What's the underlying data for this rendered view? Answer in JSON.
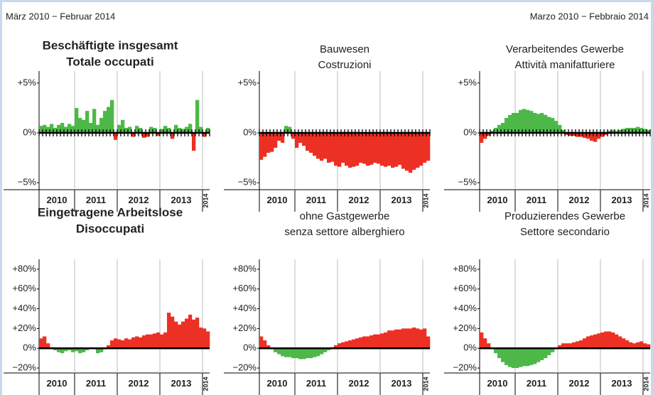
{
  "header": {
    "left": "März 2010 − Februar 2014",
    "right": "Marzo 2010 − Febbraio 2014"
  },
  "chart_data": [
    {
      "type": "bar",
      "title_lines": [
        "Beschäftigte insgesamt",
        "Totale occupati"
      ],
      "bold_title": true,
      "month_ticks": true,
      "positive_color": "#4db848",
      "negative_color": "#ed3024",
      "ylim": [
        -5.7,
        6.2
      ],
      "yticks": [
        {
          "value": 5,
          "label": "+5%"
        },
        {
          "value": 0,
          "label": "0%"
        },
        {
          "value": -5,
          "label": "−5%"
        }
      ],
      "x_labels": [
        "2010",
        "2011",
        "2012",
        "2013",
        "2014"
      ],
      "values": [
        0.7,
        0.8,
        0.6,
        0.9,
        0.5,
        0.8,
        1.0,
        0.6,
        0.9,
        0.7,
        2.5,
        1.5,
        1.3,
        2.2,
        1.0,
        2.4,
        0.8,
        1.5,
        2.2,
        2.6,
        3.3,
        -0.7,
        0.8,
        1.3,
        0.5,
        0.6,
        -0.4,
        0.7,
        0.5,
        -0.5,
        -0.4,
        0.6,
        0.5,
        -0.3,
        0.4,
        0.7,
        0.5,
        -0.6,
        0.8,
        0.5,
        0.4,
        0.6,
        0.9,
        -1.8,
        3.3,
        0.6,
        -0.4,
        0.5
      ]
    },
    {
      "type": "bar",
      "title_lines": [
        "Bauwesen",
        "Costruzioni"
      ],
      "bold_title": false,
      "month_ticks": true,
      "positive_color": "#4db848",
      "negative_color": "#ed3024",
      "ylim": [
        -5.7,
        6.2
      ],
      "yticks": [
        {
          "value": 5,
          "label": "+5%"
        },
        {
          "value": 0,
          "label": "0%"
        },
        {
          "value": -5,
          "label": "−5%"
        }
      ],
      "x_labels": [
        "2010",
        "2011",
        "2012",
        "2013",
        "2014"
      ],
      "values": [
        -2.7,
        -2.4,
        -2.0,
        -1.9,
        -1.5,
        -0.8,
        -1.0,
        0.7,
        0.6,
        -0.6,
        -1.5,
        -1.0,
        -1.3,
        -1.8,
        -2.0,
        -2.3,
        -2.6,
        -2.8,
        -2.6,
        -3.0,
        -2.9,
        -3.3,
        -3.4,
        -3.0,
        -3.3,
        -3.5,
        -3.4,
        -3.3,
        -3.0,
        -3.1,
        -3.3,
        -3.2,
        -3.0,
        -3.1,
        -3.3,
        -3.4,
        -3.3,
        -3.5,
        -3.4,
        -3.2,
        -3.6,
        -3.8,
        -4.0,
        -3.7,
        -3.5,
        -3.3,
        -3.0,
        -2.8
      ]
    },
    {
      "type": "bar",
      "title_lines": [
        "Verarbeitendes Gewerbe",
        "Attività manifatturiere"
      ],
      "bold_title": false,
      "month_ticks": true,
      "positive_color": "#4db848",
      "negative_color": "#ed3024",
      "ylim": [
        -5.7,
        6.2
      ],
      "yticks": [
        {
          "value": 5,
          "label": "+5%"
        },
        {
          "value": 0,
          "label": "0%"
        },
        {
          "value": -5,
          "label": "−5%"
        }
      ],
      "x_labels": [
        "2010",
        "2011",
        "2012",
        "2013",
        "2014"
      ],
      "values": [
        -1.0,
        -0.6,
        -0.3,
        0.2,
        0.5,
        0.8,
        1.0,
        1.5,
        1.8,
        2.0,
        2.0,
        2.3,
        2.4,
        2.3,
        2.2,
        2.0,
        1.9,
        2.0,
        1.8,
        1.6,
        1.5,
        1.2,
        0.8,
        0.3,
        -0.2,
        -0.3,
        -0.3,
        -0.4,
        -0.4,
        -0.5,
        -0.6,
        -0.8,
        -0.9,
        -0.6,
        -0.4,
        -0.2,
        0.2,
        0.3,
        0.2,
        0.3,
        0.4,
        0.5,
        0.5,
        0.5,
        0.6,
        0.5,
        0.4,
        0.3
      ]
    },
    {
      "type": "bar",
      "title_lines": [
        "Eingetragene Arbeitslose",
        "Disoccupati"
      ],
      "bold_title": true,
      "month_ticks": false,
      "positive_color": "#ed3024",
      "negative_color": "#4db848",
      "ylim": [
        -25,
        90
      ],
      "yticks": [
        {
          "value": 80,
          "label": "+80%"
        },
        {
          "value": 60,
          "label": "+60%"
        },
        {
          "value": 40,
          "label": "+40%"
        },
        {
          "value": 20,
          "label": "+20%"
        },
        {
          "value": 0,
          "label": "0%"
        },
        {
          "value": -20,
          "label": "−20%"
        }
      ],
      "x_labels": [
        "2010",
        "2011",
        "2012",
        "2013",
        "2014"
      ],
      "values": [
        10,
        12,
        5,
        1,
        -2,
        -4,
        -5,
        -3,
        -2,
        -4,
        -3,
        -5,
        -4,
        -2,
        1,
        -1,
        -5,
        -4,
        -1,
        3,
        8,
        10,
        9,
        8,
        10,
        9,
        11,
        12,
        11,
        13,
        14,
        14,
        15,
        16,
        14,
        16,
        36,
        32,
        27,
        24,
        27,
        30,
        34,
        29,
        31,
        21,
        20,
        17
      ]
    },
    {
      "type": "bar",
      "title_lines": [
        "ohne Gastgewerbe",
        "senza settore alberghiero"
      ],
      "bold_title": false,
      "month_ticks": false,
      "positive_color": "#ed3024",
      "negative_color": "#4db848",
      "ylim": [
        -25,
        90
      ],
      "yticks": [
        {
          "value": 80,
          "label": "+80%"
        },
        {
          "value": 60,
          "label": "+60%"
        },
        {
          "value": 40,
          "label": "+40%"
        },
        {
          "value": 20,
          "label": "+20%"
        },
        {
          "value": 0,
          "label": "0%"
        },
        {
          "value": -20,
          "label": "−20%"
        }
      ],
      "x_labels": [
        "2010",
        "2011",
        "2012",
        "2013",
        "2014"
      ],
      "values": [
        12,
        8,
        3,
        -1,
        -4,
        -6,
        -8,
        -9,
        -9,
        -10,
        -10,
        -11,
        -11,
        -10,
        -10,
        -9,
        -8,
        -6,
        -4,
        -2,
        1,
        3,
        5,
        6,
        7,
        8,
        9,
        10,
        11,
        12,
        12,
        13,
        14,
        14,
        15,
        16,
        18,
        18,
        19,
        19,
        20,
        20,
        20,
        21,
        20,
        19,
        20,
        12
      ]
    },
    {
      "type": "bar",
      "title_lines": [
        "Produzierendes Gewerbe",
        "Settore secondario"
      ],
      "bold_title": false,
      "month_ticks": false,
      "positive_color": "#ed3024",
      "negative_color": "#4db848",
      "ylim": [
        -25,
        90
      ],
      "yticks": [
        {
          "value": 80,
          "label": "+80%"
        },
        {
          "value": 60,
          "label": "+60%"
        },
        {
          "value": 40,
          "label": "+40%"
        },
        {
          "value": 20,
          "label": "+20%"
        },
        {
          "value": 0,
          "label": "0%"
        },
        {
          "value": -20,
          "label": "−20%"
        }
      ],
      "x_labels": [
        "2010",
        "2011",
        "2012",
        "2013",
        "2014"
      ],
      "values": [
        16,
        10,
        5,
        0,
        -5,
        -10,
        -14,
        -17,
        -19,
        -20,
        -20,
        -19,
        -18,
        -18,
        -17,
        -16,
        -14,
        -12,
        -10,
        -7,
        -4,
        -1,
        3,
        5,
        5,
        5,
        6,
        7,
        8,
        10,
        12,
        13,
        14,
        15,
        16,
        17,
        17,
        16,
        14,
        12,
        10,
        8,
        6,
        5,
        6,
        7,
        5,
        4
      ]
    }
  ]
}
